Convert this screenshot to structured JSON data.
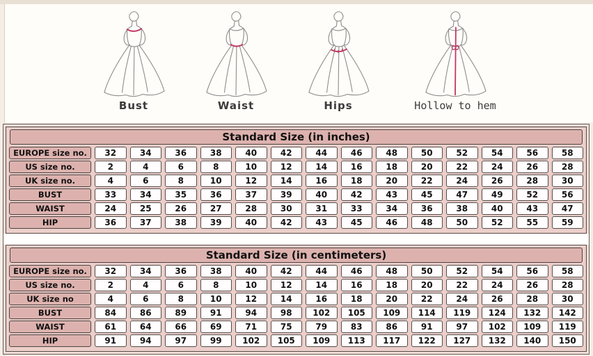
{
  "colors": {
    "header_pink": "#ddb2ae",
    "section_pink": "#eccfca",
    "cell_white": "#fffdfd",
    "box_border": "#4c4442",
    "accent_line": "#c03a64",
    "page_cream": "#f4eee6",
    "figure_bg": "#fffdf9"
  },
  "figures": [
    {
      "label": "Bust",
      "icon": "dress-bust-measure-icon"
    },
    {
      "label": "Waist",
      "icon": "dress-waist-measure-icon"
    },
    {
      "label": "Hips",
      "icon": "dress-hips-measure-icon"
    },
    {
      "label": "Hollow to hem",
      "icon": "dress-hollow-to-hem-measure-icon"
    }
  ],
  "chart_data": [
    {
      "type": "table",
      "title": "Standard Size (in inches)",
      "rows": [
        {
          "label": "EUROPE size no.",
          "values": [
            32,
            34,
            36,
            38,
            40,
            42,
            44,
            46,
            48,
            50,
            52,
            54,
            56,
            58
          ]
        },
        {
          "label": "US size no.",
          "values": [
            2,
            4,
            6,
            8,
            10,
            12,
            14,
            16,
            18,
            20,
            22,
            24,
            26,
            28
          ]
        },
        {
          "label": "UK size no.",
          "values": [
            4,
            6,
            8,
            10,
            12,
            14,
            16,
            18,
            20,
            22,
            24,
            26,
            28,
            30
          ]
        },
        {
          "label": "BUST",
          "values": [
            33,
            34,
            35,
            36,
            37,
            39,
            40,
            42,
            43,
            45,
            47,
            49,
            52,
            56
          ]
        },
        {
          "label": "WAIST",
          "values": [
            24,
            25,
            26,
            27,
            28,
            30,
            31,
            33,
            34,
            36,
            38,
            40,
            43,
            47
          ]
        },
        {
          "label": "HIP",
          "values": [
            36,
            37,
            38,
            39,
            40,
            42,
            43,
            45,
            46,
            48,
            50,
            52,
            55,
            59
          ]
        }
      ]
    },
    {
      "type": "table",
      "title": "Standard Size (in centimeters)",
      "rows": [
        {
          "label": "EUROPE size no.",
          "values": [
            32,
            34,
            36,
            38,
            40,
            42,
            44,
            46,
            48,
            50,
            52,
            54,
            56,
            58
          ]
        },
        {
          "label": "US size no.",
          "values": [
            2,
            4,
            6,
            8,
            10,
            12,
            14,
            16,
            18,
            20,
            22,
            24,
            26,
            28
          ]
        },
        {
          "label": "UK size no",
          "values": [
            4,
            6,
            8,
            10,
            12,
            14,
            16,
            18,
            20,
            22,
            24,
            26,
            28,
            30
          ]
        },
        {
          "label": "BUST",
          "values": [
            84,
            86,
            89,
            91,
            94,
            98,
            102,
            105,
            109,
            114,
            119,
            124,
            132,
            142
          ]
        },
        {
          "label": "WAIST",
          "values": [
            61,
            64,
            66,
            69,
            71,
            75,
            79,
            83,
            86,
            91,
            97,
            102,
            109,
            119
          ]
        },
        {
          "label": "HIP",
          "values": [
            91,
            94,
            97,
            99,
            102,
            105,
            109,
            113,
            117,
            122,
            127,
            132,
            140,
            150
          ]
        }
      ]
    }
  ]
}
